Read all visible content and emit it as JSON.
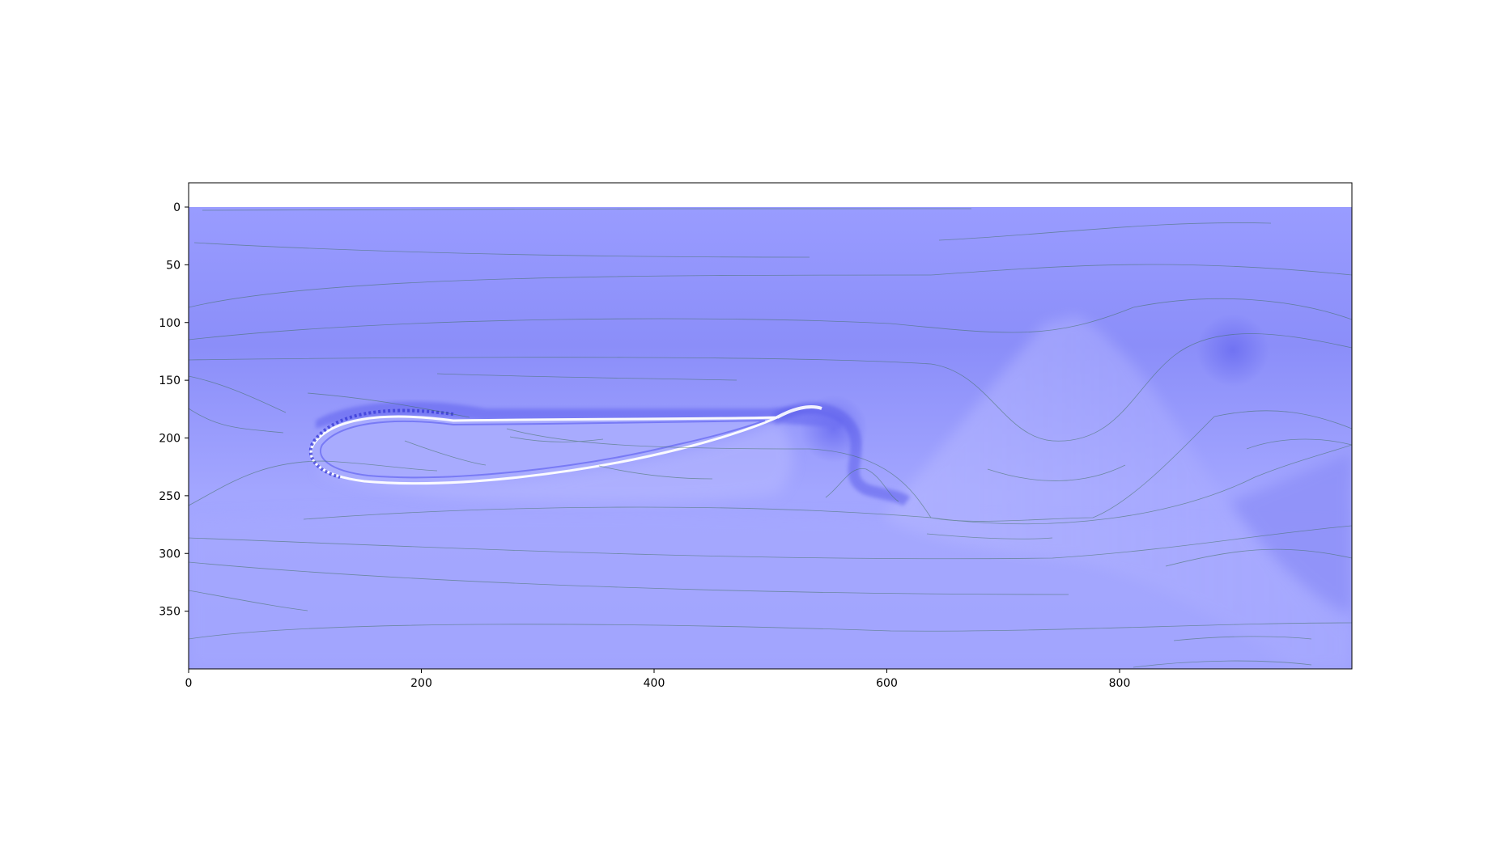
{
  "chart_data": {
    "type": "heatmap",
    "title": "",
    "xlabel": "",
    "ylabel": "",
    "xlim": [
      0,
      1000
    ],
    "ylim": [
      400,
      0
    ],
    "x_ticks": [
      0,
      200,
      400,
      600,
      800
    ],
    "y_ticks": [
      0,
      50,
      100,
      150,
      200,
      250,
      300,
      350
    ],
    "colormap": "bwr (blue half)",
    "colors": {
      "field_base": "#a3a6ff",
      "field_dark": "#7a7cf7",
      "field_light": "#e8e9ff",
      "streamline": "#3e6e5a",
      "axis": "#000000",
      "background": "#ffffff"
    },
    "overlay": "streamlines",
    "grid": false,
    "legend": "none"
  }
}
